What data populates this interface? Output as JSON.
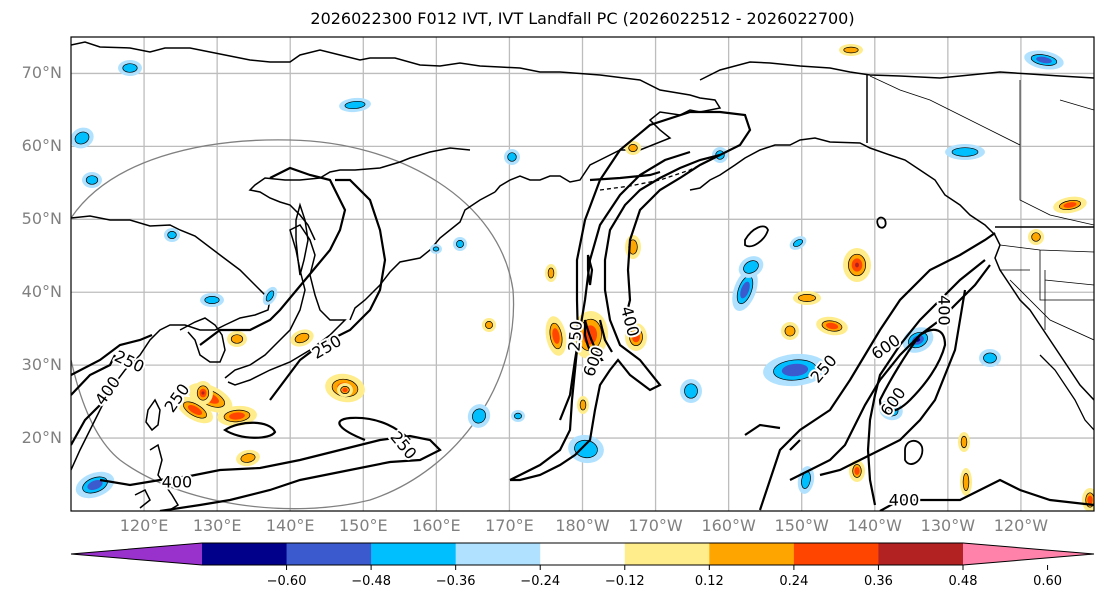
{
  "title": "2026022300 F012 IVT, IVT Landfall PC (2026022512 - 2026022700)",
  "map": {
    "projection": "PlateCarree (central 180°)",
    "extent_lon": [
      110,
      250
    ],
    "extent_lat": [
      10,
      75
    ],
    "lat_ticks": [
      {
        "value": 70,
        "label": "70°N"
      },
      {
        "value": 60,
        "label": "60°N"
      },
      {
        "value": 50,
        "label": "50°N"
      },
      {
        "value": 40,
        "label": "40°N"
      },
      {
        "value": 30,
        "label": "30°N"
      },
      {
        "value": 20,
        "label": "20°N"
      }
    ],
    "lon_ticks": [
      {
        "value": 120,
        "label": "120°E"
      },
      {
        "value": 130,
        "label": "130°E"
      },
      {
        "value": 140,
        "label": "140°E"
      },
      {
        "value": 150,
        "label": "150°E"
      },
      {
        "value": 160,
        "label": "160°E"
      },
      {
        "value": 170,
        "label": "170°E"
      },
      {
        "value": 180,
        "label": "180°W"
      },
      {
        "value": 190,
        "label": "170°W"
      },
      {
        "value": 200,
        "label": "160°W"
      },
      {
        "value": 210,
        "label": "150°W"
      },
      {
        "value": 220,
        "label": "140°W"
      },
      {
        "value": 230,
        "label": "130°W"
      },
      {
        "value": 240,
        "label": "120°W"
      }
    ],
    "contour_labels": [
      {
        "text": "250",
        "lon": 118,
        "lat": 30.5,
        "rot": 25
      },
      {
        "text": "400",
        "lon": 115,
        "lat": 26.5,
        "rot": -55
      },
      {
        "text": "250",
        "lon": 124.5,
        "lat": 25.5,
        "rot": -55
      },
      {
        "text": "250",
        "lon": 145,
        "lat": 32.5,
        "rot": -30
      },
      {
        "text": "250",
        "lon": 155.5,
        "lat": 19,
        "rot": 50
      },
      {
        "text": "400",
        "lon": 124.5,
        "lat": 14,
        "rot": 0
      },
      {
        "text": "250",
        "lon": 179,
        "lat": 34,
        "rot": -85
      },
      {
        "text": "600",
        "lon": 181.5,
        "lat": 30.5,
        "rot": -70
      },
      {
        "text": "400",
        "lon": 186.5,
        "lat": 36,
        "rot": 75
      },
      {
        "text": "250",
        "lon": 213,
        "lat": 29.5,
        "rot": -50
      },
      {
        "text": "600",
        "lon": 221.5,
        "lat": 32.5,
        "rot": -35
      },
      {
        "text": "600",
        "lon": 222.5,
        "lat": 25,
        "rot": -55
      },
      {
        "text": "400",
        "lon": 229.5,
        "lat": 37.5,
        "rot": 90
      },
      {
        "text": "400",
        "lon": 224,
        "lat": 11.5,
        "rot": 0
      }
    ]
  },
  "colorbar": {
    "ticks": [
      "−0.60",
      "−0.48",
      "−0.36",
      "−0.24",
      "−0.12",
      "0.12",
      "0.24",
      "0.36",
      "0.48",
      "0.60"
    ],
    "colors": [
      "#9932CC",
      "#00008B",
      "#3A5ACD",
      "#00BFFF",
      "#B0E2FF",
      "#FFFFFF",
      "#FFEC8B",
      "#FFA500",
      "#FF4500",
      "#B22222",
      "#FF82AB"
    ],
    "extend": "both"
  }
}
